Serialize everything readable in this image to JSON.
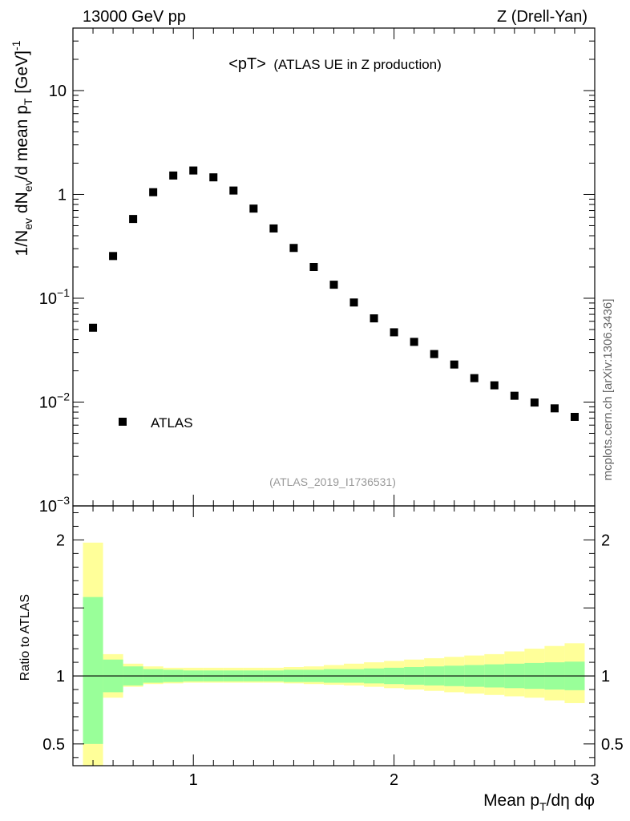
{
  "header": {
    "energy": "13000 GeV pp",
    "process": "Z (Drell-Yan)",
    "plot_title_main": "<pT>",
    "plot_title_sub": "(ATLAS UE in Z production)",
    "analysis_id": "(ATLAS_2019_I1736531)",
    "side_label": "mcplots.cern.ch [arXiv:1306.3436]"
  },
  "colors": {
    "marker": "#000000",
    "band_outer": "#ffff99",
    "band_inner": "#99ff99",
    "axis": "#000000"
  },
  "chart_data": [
    {
      "type": "scatter",
      "name": "main-panel",
      "yscale": "log",
      "ylabel": "1/N_ev dN_ev/d mean p_T [GeV]^-1",
      "xlim": [
        0.4,
        3.0
      ],
      "ylim": [
        0.001,
        40
      ],
      "yticks": [
        {
          "value": 0.001,
          "label": "10",
          "exp": "−3"
        },
        {
          "value": 0.01,
          "label": "10",
          "exp": "−2"
        },
        {
          "value": 0.1,
          "label": "10",
          "exp": "−1"
        },
        {
          "value": 1,
          "label": "1",
          "exp": ""
        },
        {
          "value": 10,
          "label": "10",
          "exp": ""
        }
      ],
      "legend": {
        "entries": [
          "ATLAS"
        ],
        "placement": "lower-left"
      },
      "series": [
        {
          "name": "ATLAS",
          "x": [
            0.5,
            0.6,
            0.7,
            0.8,
            0.9,
            1.0,
            1.1,
            1.2,
            1.3,
            1.4,
            1.5,
            1.6,
            1.7,
            1.8,
            1.9,
            2.0,
            2.1,
            2.2,
            2.3,
            2.4,
            2.5,
            2.6,
            2.7,
            2.8,
            2.9
          ],
          "y": [
            0.052,
            0.255,
            0.58,
            1.05,
            1.52,
            1.7,
            1.46,
            1.09,
            0.73,
            0.47,
            0.305,
            0.2,
            0.135,
            0.091,
            0.064,
            0.047,
            0.038,
            0.029,
            0.023,
            0.017,
            0.0145,
            0.0115,
            0.0099,
            0.0087,
            0.0072
          ]
        }
      ]
    },
    {
      "type": "area",
      "name": "ratio-panel",
      "ylabel": "Ratio to ATLAS",
      "xlabel": "Mean p_T/dη dφ",
      "xlim": [
        0.4,
        3.0
      ],
      "ylim": [
        0.34,
        2.25
      ],
      "xticks": [
        {
          "value": 1,
          "label": "1"
        },
        {
          "value": 2,
          "label": "2"
        },
        {
          "value": 3,
          "label": "3"
        }
      ],
      "yticks": [
        {
          "value": 0.5,
          "label": "0.5"
        },
        {
          "value": 1,
          "label": "1"
        },
        {
          "value": 2,
          "label": "2"
        }
      ],
      "reference_line": 1.0,
      "bins": [
        0.45,
        0.55,
        0.65,
        0.75,
        0.85,
        0.95,
        1.05,
        1.15,
        1.25,
        1.35,
        1.45,
        1.55,
        1.65,
        1.75,
        1.85,
        1.95,
        2.05,
        2.15,
        2.25,
        2.35,
        2.45,
        2.55,
        2.65,
        2.75,
        2.85,
        2.95
      ],
      "band_inner": {
        "low": [
          0.5,
          0.88,
          0.93,
          0.95,
          0.955,
          0.96,
          0.96,
          0.96,
          0.96,
          0.96,
          0.955,
          0.955,
          0.95,
          0.95,
          0.945,
          0.94,
          0.935,
          0.93,
          0.925,
          0.92,
          0.915,
          0.91,
          0.905,
          0.9,
          0.895
        ],
        "high": [
          1.58,
          1.12,
          1.07,
          1.05,
          1.045,
          1.04,
          1.04,
          1.04,
          1.04,
          1.04,
          1.045,
          1.045,
          1.05,
          1.05,
          1.055,
          1.06,
          1.065,
          1.07,
          1.075,
          1.08,
          1.085,
          1.09,
          1.095,
          1.1,
          1.105
        ]
      },
      "band_outer": {
        "low": [
          0.34,
          0.84,
          0.92,
          0.94,
          0.945,
          0.95,
          0.95,
          0.95,
          0.95,
          0.95,
          0.945,
          0.94,
          0.935,
          0.93,
          0.92,
          0.91,
          0.9,
          0.89,
          0.88,
          0.87,
          0.86,
          0.85,
          0.84,
          0.82,
          0.8
        ],
        "high": [
          1.98,
          1.16,
          1.09,
          1.07,
          1.06,
          1.06,
          1.06,
          1.06,
          1.06,
          1.06,
          1.065,
          1.07,
          1.08,
          1.09,
          1.1,
          1.11,
          1.12,
          1.13,
          1.14,
          1.15,
          1.16,
          1.18,
          1.2,
          1.22,
          1.24
        ]
      }
    }
  ]
}
